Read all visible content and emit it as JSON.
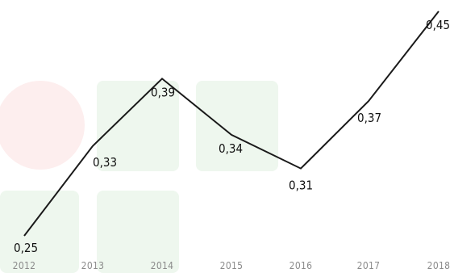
{
  "chart_data": {
    "type": "line",
    "categories": [
      "2012",
      "2013",
      "2014",
      "2015",
      "2016",
      "2017",
      "2018"
    ],
    "values": [
      0.25,
      0.33,
      0.39,
      0.34,
      0.31,
      0.37,
      0.45
    ],
    "data_labels": [
      "0,25",
      "0,33",
      "0,39",
      "0,34",
      "0,31",
      "0,37",
      "0,45"
    ],
    "title": "",
    "xlabel": "",
    "ylabel": "",
    "grid": false,
    "legend": "none",
    "line_color": "#1a1a1a",
    "label_color": "#111111",
    "tick_color": "#8a8a8a"
  }
}
